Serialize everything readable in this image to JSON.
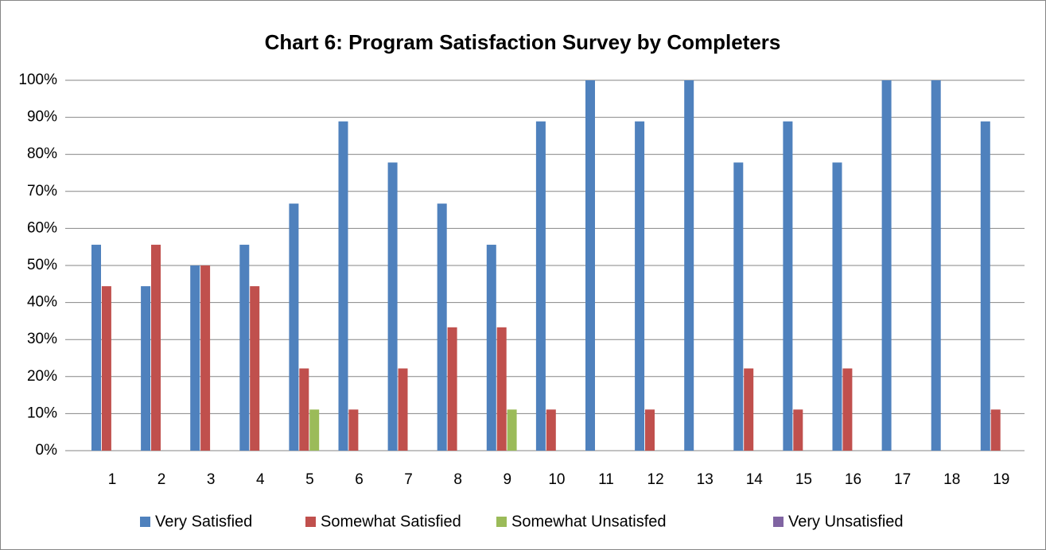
{
  "chart_data": {
    "type": "bar",
    "title": "Chart 6: Program Satisfaction Survey by Completers",
    "categories": [
      "1",
      "2",
      "3",
      "4",
      "5",
      "6",
      "7",
      "8",
      "9",
      "10",
      "11",
      "12",
      "13",
      "14",
      "15",
      "16",
      "17",
      "18",
      "19"
    ],
    "series": [
      {
        "name": "Very Satisfied",
        "color": "#4f81bd",
        "values": [
          55.6,
          44.4,
          50,
          55.6,
          66.7,
          88.9,
          77.8,
          66.7,
          55.6,
          88.9,
          100,
          88.9,
          100,
          77.8,
          88.9,
          77.8,
          100,
          100,
          88.9
        ]
      },
      {
        "name": "Somewhat Satisfied",
        "color": "#c0504d",
        "values": [
          44.4,
          55.6,
          50,
          44.4,
          22.2,
          11.1,
          22.2,
          33.3,
          33.3,
          11.1,
          0,
          11.1,
          0,
          22.2,
          11.1,
          22.2,
          0,
          0,
          11.1
        ]
      },
      {
        "name": "Somewhat Unsatisfed",
        "color": "#9bbb59",
        "values": [
          0,
          0,
          0,
          0,
          11.1,
          0,
          0,
          0,
          11.1,
          0,
          0,
          0,
          0,
          0,
          0,
          0,
          0,
          0,
          0
        ]
      },
      {
        "name": "Very Unsatisfied",
        "color": "#8064a2",
        "values": [
          0,
          0,
          0,
          0,
          0,
          0,
          0,
          0,
          0,
          0,
          0,
          0,
          0,
          0,
          0,
          0,
          0,
          0,
          0
        ]
      }
    ],
    "ylim": [
      0,
      100
    ],
    "yticks": [
      {
        "value": 0,
        "label": "0%"
      },
      {
        "value": 10,
        "label": "10%"
      },
      {
        "value": 20,
        "label": "20%"
      },
      {
        "value": 30,
        "label": "30%"
      },
      {
        "value": 40,
        "label": "40%"
      },
      {
        "value": 50,
        "label": "50%"
      },
      {
        "value": 60,
        "label": "60%"
      },
      {
        "value": 70,
        "label": "70%"
      },
      {
        "value": 80,
        "label": "80%"
      },
      {
        "value": 90,
        "label": "90%"
      },
      {
        "value": 100,
        "label": "100%"
      }
    ],
    "grid": true,
    "legend": "bottom"
  }
}
